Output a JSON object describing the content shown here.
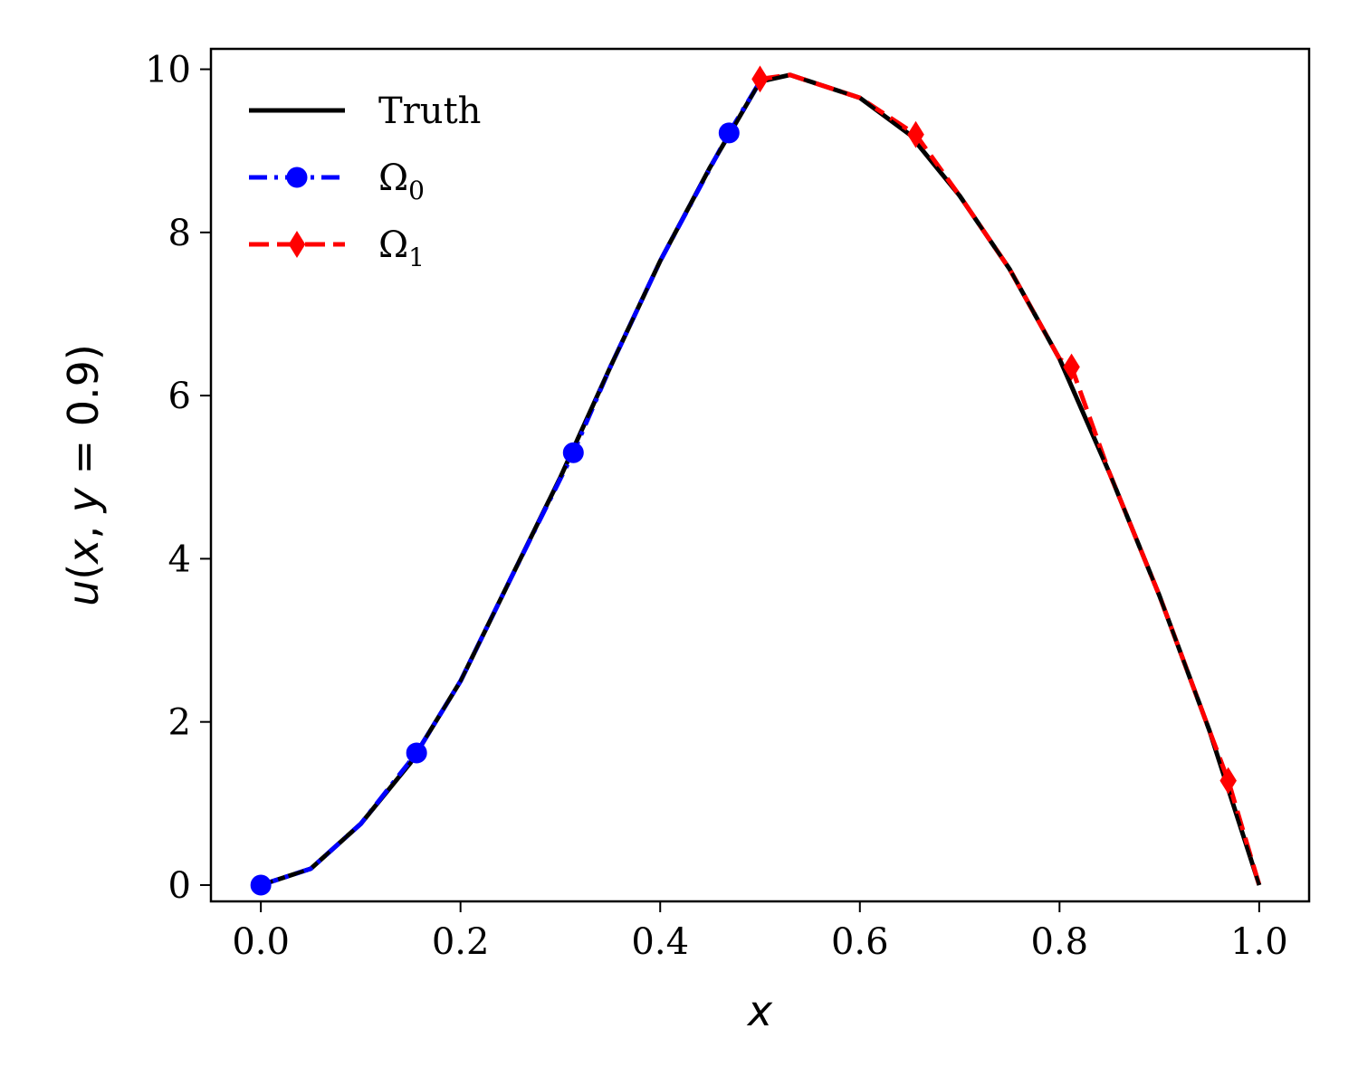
{
  "chart_data": {
    "type": "line",
    "xlabel": "x",
    "ylabel_parts": [
      "u",
      "(",
      "x",
      ", ",
      "y",
      " = 0.9)"
    ],
    "xlim": [
      -0.05,
      1.05
    ],
    "ylim": [
      -0.2,
      10.25
    ],
    "xticks": [
      0.0,
      0.2,
      0.4,
      0.6,
      0.8,
      1.0
    ],
    "xtick_labels": [
      "0.0",
      "0.2",
      "0.4",
      "0.6",
      "0.8",
      "1.0"
    ],
    "yticks": [
      0,
      2,
      4,
      6,
      8,
      10
    ],
    "ytick_labels": [
      "0",
      "2",
      "4",
      "6",
      "8",
      "10"
    ],
    "grid": false,
    "legend_position": "top-left",
    "series": [
      {
        "name": "Truth",
        "color": "#000000",
        "style": "solid",
        "marker": "none",
        "x": [
          0.0,
          0.05,
          0.1,
          0.15,
          0.2,
          0.25,
          0.3,
          0.35,
          0.4,
          0.45,
          0.5,
          0.53,
          0.6,
          0.65,
          0.7,
          0.75,
          0.8,
          0.85,
          0.9,
          0.95,
          1.0
        ],
        "y": [
          0.0,
          0.2,
          0.75,
          1.5,
          2.5,
          3.75,
          5.0,
          6.35,
          7.65,
          8.8,
          9.85,
          9.93,
          9.65,
          9.2,
          8.45,
          7.55,
          6.45,
          5.05,
          3.55,
          1.9,
          0.0
        ]
      },
      {
        "name": "Ω",
        "subscript": "0",
        "color": "#0000ff",
        "style": "dashdot",
        "marker": "circle",
        "x": [
          0.0,
          0.05,
          0.1,
          0.156,
          0.2,
          0.25,
          0.313,
          0.35,
          0.4,
          0.469,
          0.5
        ],
        "y": [
          0.0,
          0.2,
          0.75,
          1.62,
          2.5,
          3.75,
          5.3,
          6.35,
          7.65,
          9.22,
          9.85
        ],
        "marker_x": [
          0.0,
          0.156,
          0.313,
          0.469
        ],
        "marker_y": [
          0.0,
          1.62,
          5.3,
          9.22
        ]
      },
      {
        "name": "Ω",
        "subscript": "1",
        "color": "#ff0000",
        "style": "dashed",
        "marker": "diamond",
        "x": [
          0.5,
          0.53,
          0.6,
          0.656,
          0.7,
          0.75,
          0.8,
          0.812,
          0.85,
          0.9,
          0.95,
          0.969,
          1.0
        ],
        "y": [
          9.88,
          9.93,
          9.65,
          9.2,
          8.45,
          7.55,
          6.45,
          6.35,
          5.05,
          3.55,
          1.9,
          1.28,
          0.0
        ],
        "marker_x": [
          0.5,
          0.656,
          0.812,
          0.969
        ],
        "marker_y": [
          9.88,
          9.2,
          6.35,
          1.28
        ]
      }
    ]
  }
}
